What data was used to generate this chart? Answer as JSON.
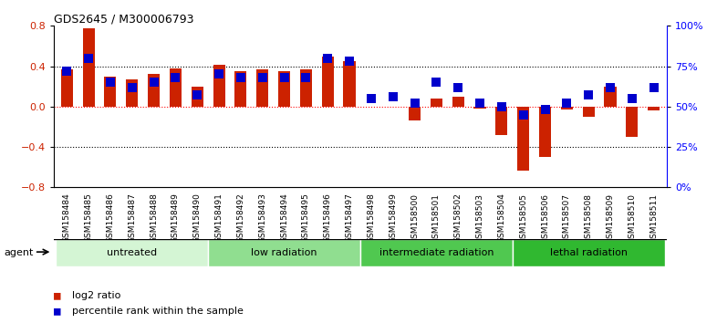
{
  "title": "GDS2645 / M300006793",
  "samples": [
    "GSM158484",
    "GSM158485",
    "GSM158486",
    "GSM158487",
    "GSM158488",
    "GSM158489",
    "GSM158490",
    "GSM158491",
    "GSM158492",
    "GSM158493",
    "GSM158494",
    "GSM158495",
    "GSM158496",
    "GSM158497",
    "GSM158498",
    "GSM158499",
    "GSM158500",
    "GSM158501",
    "GSM158502",
    "GSM158503",
    "GSM158504",
    "GSM158505",
    "GSM158506",
    "GSM158507",
    "GSM158508",
    "GSM158509",
    "GSM158510",
    "GSM158511"
  ],
  "log2_ratio": [
    0.37,
    0.78,
    0.3,
    0.27,
    0.32,
    0.38,
    0.2,
    0.41,
    0.35,
    0.37,
    0.35,
    0.37,
    0.5,
    0.45,
    0.0,
    0.0,
    -0.14,
    0.08,
    0.1,
    -0.02,
    -0.28,
    -0.63,
    -0.5,
    -0.03,
    -0.1,
    0.2,
    -0.3,
    -0.04
  ],
  "percentile_rank": [
    72,
    80,
    65,
    62,
    65,
    68,
    57,
    70,
    68,
    68,
    68,
    68,
    80,
    78,
    55,
    56,
    52,
    65,
    62,
    52,
    50,
    45,
    48,
    52,
    57,
    62,
    55,
    62
  ],
  "groups": [
    {
      "label": "untreated",
      "start": 0,
      "end": 6,
      "color": "#d4f5d4"
    },
    {
      "label": "low radiation",
      "start": 7,
      "end": 13,
      "color": "#90de90"
    },
    {
      "label": "intermediate radiation",
      "start": 14,
      "end": 20,
      "color": "#50c850"
    },
    {
      "label": "lethal radiation",
      "start": 21,
      "end": 27,
      "color": "#30b830"
    }
  ],
  "bar_color": "#cc2200",
  "dot_color": "#0000cc",
  "ylim": [
    -0.8,
    0.8
  ],
  "y2lim": [
    0,
    100
  ],
  "yticks": [
    -0.8,
    -0.4,
    0.0,
    0.4,
    0.8
  ],
  "y2ticks": [
    0,
    25,
    50,
    75,
    100
  ],
  "y2ticklabels": [
    "0%",
    "25%",
    "50%",
    "75%",
    "100%"
  ],
  "hline_vals": [
    -0.4,
    0.0,
    0.4
  ],
  "bar_width": 0.55,
  "dot_size": 55,
  "background_color": "#ffffff",
  "plot_bg": "#ffffff",
  "agent_label": "agent"
}
